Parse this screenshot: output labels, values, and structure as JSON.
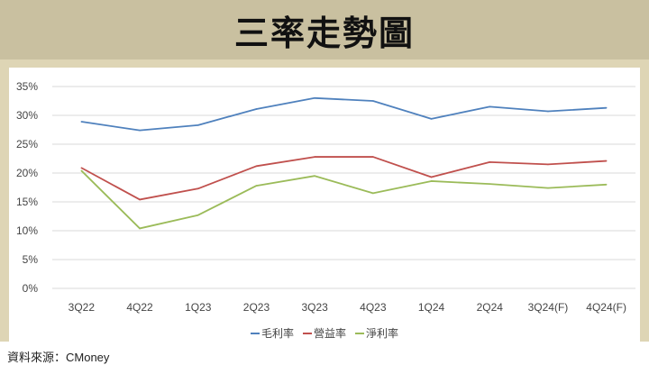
{
  "title": "三率走勢圖",
  "source": "資料來源：CMoney",
  "colors": {
    "gross": "#4f81bd",
    "operating": "#c0504d",
    "net": "#9bbb59"
  },
  "chart_data": {
    "type": "line",
    "categories": [
      "3Q22",
      "4Q22",
      "1Q23",
      "2Q23",
      "3Q23",
      "4Q23",
      "1Q24",
      "2Q24",
      "3Q24(F)",
      "4Q24(F)"
    ],
    "series": [
      {
        "name": "毛利率",
        "values": [
          28.9,
          27.4,
          28.3,
          31.1,
          33.0,
          32.5,
          29.4,
          31.5,
          30.7,
          31.3
        ]
      },
      {
        "name": "營益率",
        "values": [
          20.9,
          15.4,
          17.3,
          21.2,
          22.8,
          22.8,
          19.3,
          21.9,
          21.5,
          22.1
        ]
      },
      {
        "name": "淨利率",
        "values": [
          20.4,
          10.4,
          12.7,
          17.8,
          19.5,
          16.5,
          18.6,
          18.1,
          17.4,
          18.0
        ]
      }
    ],
    "yticks": [
      "0%",
      "5%",
      "10%",
      "15%",
      "20%",
      "25%",
      "30%",
      "35%"
    ],
    "ylim": [
      0,
      35
    ],
    "grid": true,
    "legend": "bottom"
  }
}
